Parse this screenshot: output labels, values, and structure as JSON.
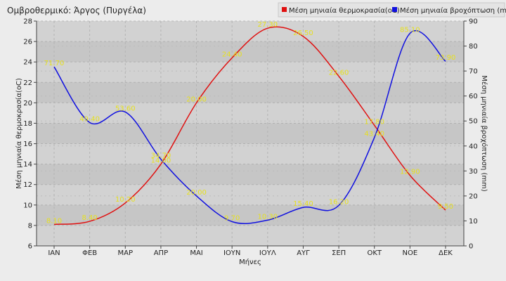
{
  "chart_data": {
    "type": "line",
    "title": "Ομβροθερμικό: Άργος (Πυργέλα)",
    "xlabel": "Μήνες",
    "ylabel_left": "Μέση μηνιαία θερμοκρασία(oC)",
    "ylabel_right": "Μέση μηνιαία βροχόπτωση (mm)",
    "categories": [
      "ΙΑΝ",
      "ΦΕΒ",
      "ΜΑΡ",
      "ΑΠΡ",
      "ΜΑΙ",
      "ΙΟΥΝ",
      "ΙΟΥΛ",
      "ΑΥΓ",
      "ΣΕΠ",
      "ΟΚΤ",
      "ΝΟΕ",
      "ΔΕΚ"
    ],
    "ylim_left": [
      6,
      28
    ],
    "ylim_right": [
      0,
      90
    ],
    "yticks_left": [
      "6",
      "8",
      "10",
      "12",
      "14",
      "16",
      "18",
      "20",
      "22",
      "24",
      "26",
      "28"
    ],
    "yticks_right": [
      "0",
      "10",
      "20",
      "30",
      "40",
      "50",
      "60",
      "70",
      "80",
      "90"
    ],
    "legend_position": "top-right",
    "grid": true,
    "series": [
      {
        "name": "Μέση μηνιαία θερμοκρασία(oC)",
        "axis": "left",
        "color": "#e01010",
        "values": [
          8.1,
          8.4,
          10.2,
          14.0,
          20.0,
          24.4,
          27.3,
          26.5,
          22.6,
          17.8,
          12.9,
          9.5
        ],
        "labels": [
          "8.10",
          "8.40",
          "10.20",
          "14.00",
          "20.00",
          "24.40",
          "27.30",
          "26.50",
          "22.60",
          "17.80",
          "12.90",
          "9.50"
        ]
      },
      {
        "name": "Μέση μηνιαία βροχόπτωση (mm)",
        "axis": "right",
        "color": "#1010e0",
        "values": [
          71.7,
          49.4,
          53.6,
          34.7,
          20.0,
          9.7,
          10.3,
          15.4,
          16.2,
          43.4,
          85.1,
          73.9
        ],
        "labels": [
          "71.70",
          "49.40",
          "53.60",
          "34.70",
          "20.00",
          "9.70",
          "10.30",
          "15.40",
          "16.20",
          "43.40",
          "85.10",
          "73.90"
        ]
      }
    ]
  }
}
